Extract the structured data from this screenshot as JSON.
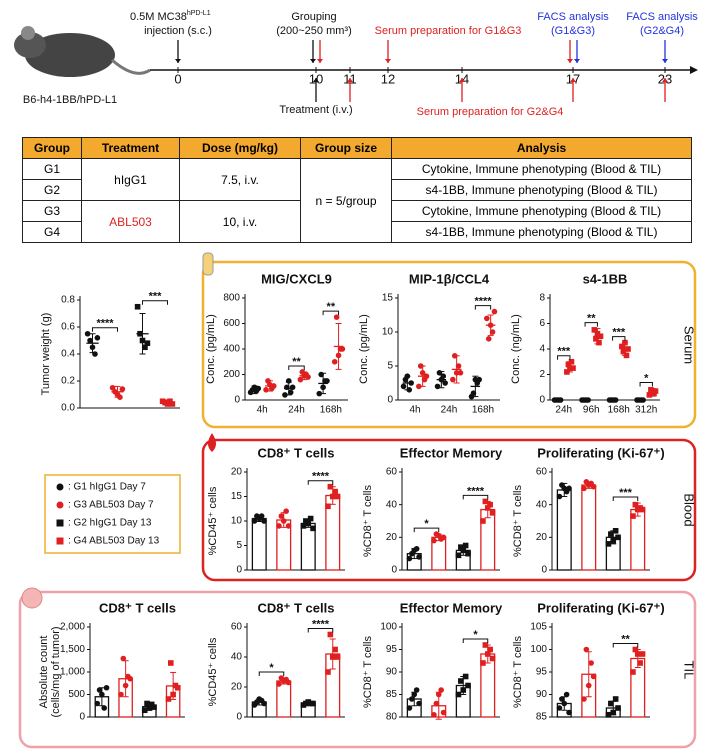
{
  "timeline": {
    "days": [
      0,
      10,
      11,
      12,
      14,
      17,
      23
    ],
    "injection": {
      "text": "0.5M MC38",
      "sup": "hPD-L1",
      "line2": "injection (s.c.)"
    },
    "grouping": [
      "Grouping",
      "(200~250 mm³)"
    ],
    "serum1": "Serum preparation for G1&G3",
    "facs1": [
      "FACS analysis",
      "(G1&G3)"
    ],
    "facs2": [
      "FACS analysis",
      "(G2&G4)"
    ],
    "treatment": "Treatment (i.v.)",
    "serum2": "Serum preparation for G2&G4",
    "mouse": "B6-h4-1BB/hPD-L1"
  },
  "table": {
    "header": [
      "Group",
      "Treatment",
      "Dose (mg/kg)",
      "Group size",
      "Analysis"
    ],
    "rows": [
      [
        "G1",
        "hIgG1",
        "7.5, i.v.",
        "n = 5/group",
        "Cytokine, Immune phenotyping (Blood & TIL)"
      ],
      [
        "G2",
        "s4-1BB, Immune phenotyping (Blood & TIL)"
      ],
      [
        "G3",
        "ABL503",
        "10, i.v.",
        "Cytokine, Immune phenotyping (Blood & TIL)"
      ],
      [
        "G4",
        "s4-1BB, Immune phenotyping (Blood & TIL)"
      ]
    ]
  },
  "panels": {
    "serum": "Serum",
    "blood": "Blood",
    "til": "TIL"
  },
  "legend": [
    {
      "text": ": G1 hIgG1 Day 7",
      "color": "#111111",
      "marker": "circle"
    },
    {
      "text": ": G3 ABL503 Day 7",
      "color": "#e02020",
      "marker": "circle"
    },
    {
      "text": ": G2 hIgG1 Day 13",
      "color": "#111111",
      "marker": "square"
    },
    {
      "text": ": G4 ABL503 Day 13",
      "color": "#e02020",
      "marker": "square"
    }
  ],
  "chart_data": [
    {
      "type": "dot",
      "ylabel": "Tumor weight (g)",
      "ylim": [
        0,
        0.8
      ],
      "yticks": [
        {
          "value": 0,
          "label": "0.0"
        },
        0.2,
        0.4,
        0.6,
        0.8
      ],
      "categories": [
        null,
        null,
        null,
        null
      ],
      "values": [
        0.48,
        0.12,
        0.55,
        0.04
      ],
      "errors": [
        0.07,
        0.04,
        0.15,
        0.02
      ],
      "points": [
        [
          0.55,
          0.5,
          0.45,
          0.4,
          0.52
        ],
        [
          0.15,
          0.12,
          0.1,
          0.08,
          0.14
        ],
        [
          0.75,
          0.55,
          0.5,
          0.45,
          0.48
        ],
        [
          0.05,
          0.04,
          0.03,
          0.05,
          0.03
        ]
      ],
      "colors": [
        "#111111",
        "#e02020",
        "#111111",
        "#e02020"
      ],
      "markers": [
        "circle",
        "circle",
        "square",
        "square"
      ],
      "annotations": [
        {
          "text": "****",
          "between": [
            0,
            1
          ]
        },
        {
          "text": "***",
          "between": [
            2,
            3
          ]
        }
      ]
    },
    {
      "type": "dot",
      "title": "MIG/CXCL9",
      "ylabel": "Conc. (pg/mL)",
      "ylim": [
        0,
        800
      ],
      "yticks": [
        0,
        200,
        400,
        600,
        800
      ],
      "categories": [
        "4h",
        "24h",
        "168h"
      ],
      "series": [
        {
          "color": "#111111",
          "marker": "circle",
          "values": [
            80,
            90,
            130
          ],
          "errors": [
            30,
            50,
            80
          ],
          "points": [
            [
              60,
              80,
              100,
              70,
              90
            ],
            [
              40,
              100,
              150,
              60,
              100
            ],
            [
              50,
              200,
              100,
              150,
              150
            ]
          ]
        },
        {
          "color": "#e02020",
          "marker": "circle",
          "values": [
            110,
            190,
            420
          ],
          "errors": [
            40,
            30,
            180
          ],
          "points": [
            [
              80,
              150,
              120,
              90,
              110
            ],
            [
              160,
              220,
              190,
              200,
              180
            ],
            [
              300,
              650,
              350,
              400,
              400
            ]
          ]
        }
      ],
      "annotations": [
        {
          "text": "**",
          "category": 1
        },
        {
          "text": "**",
          "category": 2
        }
      ]
    },
    {
      "type": "dot",
      "title": "MIP-1β/CCL4",
      "ylabel": "Conc. (pg/mL)",
      "ylim": [
        0,
        15
      ],
      "yticks": [
        0,
        5,
        10,
        15
      ],
      "categories": [
        "4h",
        "24h",
        "168h"
      ],
      "series": [
        {
          "color": "#111111",
          "marker": "circle",
          "values": [
            2.5,
            3,
            2
          ],
          "errors": [
            1,
            1.2,
            1.5
          ],
          "points": [
            [
              2,
              3,
              3.5,
              1.5,
              2.5
            ],
            [
              2,
              4,
              3,
              3.5,
              2.5
            ],
            [
              0.5,
              1,
              3,
              2.5,
              3
            ]
          ]
        },
        {
          "color": "#e02020",
          "marker": "circle",
          "values": [
            3.5,
            4.5,
            11
          ],
          "errors": [
            1.5,
            2,
            1.5
          ],
          "points": [
            [
              2,
              5,
              4,
              3,
              3.5
            ],
            [
              3,
              6.5,
              4,
              5,
              4
            ],
            [
              12,
              9,
              11,
              10,
              13
            ]
          ]
        }
      ],
      "annotations": [
        {
          "text": "****",
          "category": 2
        }
      ]
    },
    {
      "type": "dot",
      "title": "s4-1BB",
      "ylabel": "Conc. (ng/mL)",
      "ylim": [
        0,
        8
      ],
      "yticks": [
        0,
        2,
        4,
        6,
        8
      ],
      "categories": [
        "24h",
        "96h",
        "168h",
        "312h"
      ],
      "series": [
        {
          "color": "#111111",
          "marker": "circle",
          "values": [
            0,
            0,
            0,
            0
          ],
          "errors": [
            0,
            0,
            0,
            0
          ],
          "points": [
            [
              0,
              0,
              0,
              0,
              0
            ],
            [
              0,
              0,
              0,
              0,
              0
            ],
            [
              0,
              0,
              0,
              0,
              0
            ],
            [
              0,
              0,
              0,
              0,
              0
            ]
          ]
        },
        {
          "color": "#e02020",
          "marker": "square",
          "values": [
            2.6,
            5,
            4,
            0.6
          ],
          "errors": [
            0.4,
            0.6,
            0.5,
            0.3
          ],
          "points": [
            [
              2.2,
              2.8,
              2.5,
              3,
              2.5
            ],
            [
              5.5,
              4.8,
              5.2,
              4.5,
              5
            ],
            [
              4.2,
              3.8,
              4.5,
              3.5,
              4
            ],
            [
              0.4,
              0.8,
              0.6,
              0.5,
              0.7
            ]
          ]
        }
      ],
      "annotations": [
        {
          "text": "***",
          "category": 0
        },
        {
          "text": "**",
          "category": 1
        },
        {
          "text": "***",
          "category": 2
        },
        {
          "text": "*",
          "category": 3
        }
      ]
    },
    {
      "type": "bar",
      "title": "CD8⁺ T cells",
      "ylabel": "%CD45⁺ cells",
      "ylim": [
        0,
        20
      ],
      "yticks": [
        0,
        5,
        10,
        15,
        20
      ],
      "categories": [
        null,
        null,
        null,
        null
      ],
      "values": [
        10.5,
        10.2,
        9.5,
        15.2
      ],
      "errors": [
        0.6,
        1.5,
        0.8,
        1.8
      ],
      "points": [
        [
          10,
          11,
          10.5,
          11,
          10
        ],
        [
          9,
          11,
          10,
          12,
          9
        ],
        [
          9,
          10,
          9.5,
          10.5,
          8.5
        ],
        [
          13,
          17,
          15,
          16,
          15
        ]
      ],
      "colors": [
        "#111111",
        "#e02020",
        "#111111",
        "#e02020"
      ],
      "markers": [
        "circle",
        "circle",
        "square",
        "square"
      ],
      "annotations": [
        {
          "text": "****",
          "between": [
            2,
            3
          ]
        }
      ]
    },
    {
      "type": "bar",
      "title": "Effector Memory",
      "ylabel": "%CD8⁺ T cells",
      "ylim": [
        0,
        60
      ],
      "yticks": [
        0,
        20,
        40,
        60
      ],
      "categories": [
        null,
        null,
        null,
        null
      ],
      "values": [
        10,
        20,
        12,
        37
      ],
      "errors": [
        3,
        2,
        3,
        5
      ],
      "points": [
        [
          7,
          10,
          12,
          13,
          8
        ],
        [
          18,
          22,
          21,
          19,
          20
        ],
        [
          9,
          14,
          12,
          15,
          10
        ],
        [
          30,
          42,
          38,
          40,
          35
        ]
      ],
      "colors": [
        "#111111",
        "#e02020",
        "#111111",
        "#e02020"
      ],
      "markers": [
        "circle",
        "circle",
        "square",
        "square"
      ],
      "annotations": [
        {
          "text": "*",
          "between": [
            0,
            1
          ]
        },
        {
          "text": "****",
          "between": [
            2,
            3
          ]
        }
      ]
    },
    {
      "type": "bar",
      "title": "Proliferating (Ki-67⁺)",
      "ylabel": "%CD8⁺ T cells",
      "ylim": [
        0,
        60
      ],
      "yticks": [
        0,
        20,
        40,
        60
      ],
      "categories": [
        null,
        null,
        null,
        null
      ],
      "values": [
        49,
        52,
        20,
        37
      ],
      "errors": [
        4,
        2,
        4,
        4
      ],
      "points": [
        [
          45,
          52,
          50,
          48,
          50
        ],
        [
          50,
          54,
          52,
          53,
          51
        ],
        [
          16,
          22,
          18,
          24,
          20
        ],
        [
          33,
          40,
          37,
          38,
          37
        ]
      ],
      "colors": [
        "#111111",
        "#e02020",
        "#111111",
        "#e02020"
      ],
      "markers": [
        "circle",
        "circle",
        "square",
        "square"
      ],
      "annotations": [
        {
          "text": "***",
          "between": [
            2,
            3
          ]
        }
      ]
    },
    {
      "type": "bar",
      "title": "CD8⁺ T cells",
      "ylabel": [
        "Absolute count",
        "(cells/mg of tumor)"
      ],
      "ylim": [
        0,
        2000
      ],
      "yticks": [
        0,
        500,
        {
          "value": 1000,
          "label": "1,000"
        },
        {
          "value": 1500,
          "label": "1,500"
        },
        {
          "value": 2000,
          "label": "2,000"
        }
      ],
      "categories": [
        null,
        null,
        null,
        null
      ],
      "values": [
        450,
        850,
        230,
        690
      ],
      "errors": [
        200,
        400,
        80,
        300
      ],
      "points": [
        [
          300,
          600,
          500,
          200,
          650
        ],
        [
          500,
          1300,
          700,
          900,
          850
        ],
        [
          150,
          300,
          200,
          280,
          220
        ],
        [
          400,
          1200,
          500,
          700,
          650
        ]
      ],
      "colors": [
        "#111111",
        "#e02020",
        "#111111",
        "#e02020"
      ],
      "markers": [
        "circle",
        "circle",
        "square",
        "square"
      ],
      "annotations": []
    },
    {
      "type": "bar",
      "title": "CD8⁺ T cells",
      "ylabel": "%CD45⁺ cells",
      "ylim": [
        0,
        60
      ],
      "yticks": [
        0,
        20,
        40,
        60
      ],
      "categories": [
        null,
        null,
        null,
        null
      ],
      "values": [
        10,
        24,
        9,
        42
      ],
      "errors": [
        2,
        2,
        1,
        10
      ],
      "points": [
        [
          8,
          10,
          12,
          11,
          9
        ],
        [
          22,
          26,
          24,
          25,
          23
        ],
        [
          8,
          9,
          10,
          9,
          9
        ],
        [
          30,
          55,
          40,
          45,
          40
        ]
      ],
      "colors": [
        "#111111",
        "#e02020",
        "#111111",
        "#e02020"
      ],
      "markers": [
        "circle",
        "circle",
        "square",
        "square"
      ],
      "annotations": [
        {
          "text": "*",
          "between": [
            0,
            1
          ]
        },
        {
          "text": "****",
          "between": [
            2,
            3
          ]
        }
      ]
    },
    {
      "type": "bar",
      "title": "Effector Memory",
      "ylabel": "%CD8⁺ T cells",
      "ylim": [
        80,
        100
      ],
      "yticks": [
        80,
        85,
        90,
        95,
        100
      ],
      "categories": [
        null,
        null,
        null,
        null
      ],
      "values": [
        84,
        82.5,
        87,
        94
      ],
      "errors": [
        1.5,
        3,
        2,
        2
      ],
      "points": [
        [
          82,
          84,
          85,
          86,
          83
        ],
        [
          80.5,
          83,
          85,
          86,
          81
        ],
        [
          85,
          88,
          86,
          89,
          87
        ],
        [
          92,
          96,
          94,
          95,
          93
        ]
      ],
      "colors": [
        "#111111",
        "#e02020",
        "#111111",
        "#e02020"
      ],
      "markers": [
        "circle",
        "circle",
        "square",
        "square"
      ],
      "annotations": [
        {
          "text": "*",
          "between": [
            2,
            3
          ]
        }
      ]
    },
    {
      "type": "bar",
      "title": "Proliferating (Ki-67⁺)",
      "ylabel": "%CD8⁺ T cells",
      "ylim": [
        85,
        105
      ],
      "yticks": [
        85,
        90,
        95,
        100,
        105
      ],
      "categories": [
        null,
        null,
        null,
        null
      ],
      "values": [
        88,
        94.5,
        87,
        98
      ],
      "errors": [
        1.5,
        5,
        1.5,
        2
      ],
      "points": [
        [
          87,
          89,
          88,
          90,
          86
        ],
        [
          89,
          100,
          92,
          97,
          94
        ],
        [
          85.5,
          88,
          86,
          89,
          87
        ],
        [
          95,
          100,
          99,
          97,
          99
        ]
      ],
      "colors": [
        "#111111",
        "#e02020",
        "#111111",
        "#e02020"
      ],
      "markers": [
        "circle",
        "circle",
        "square",
        "square"
      ],
      "annotations": [
        {
          "text": "**",
          "between": [
            2,
            3
          ]
        }
      ]
    }
  ]
}
